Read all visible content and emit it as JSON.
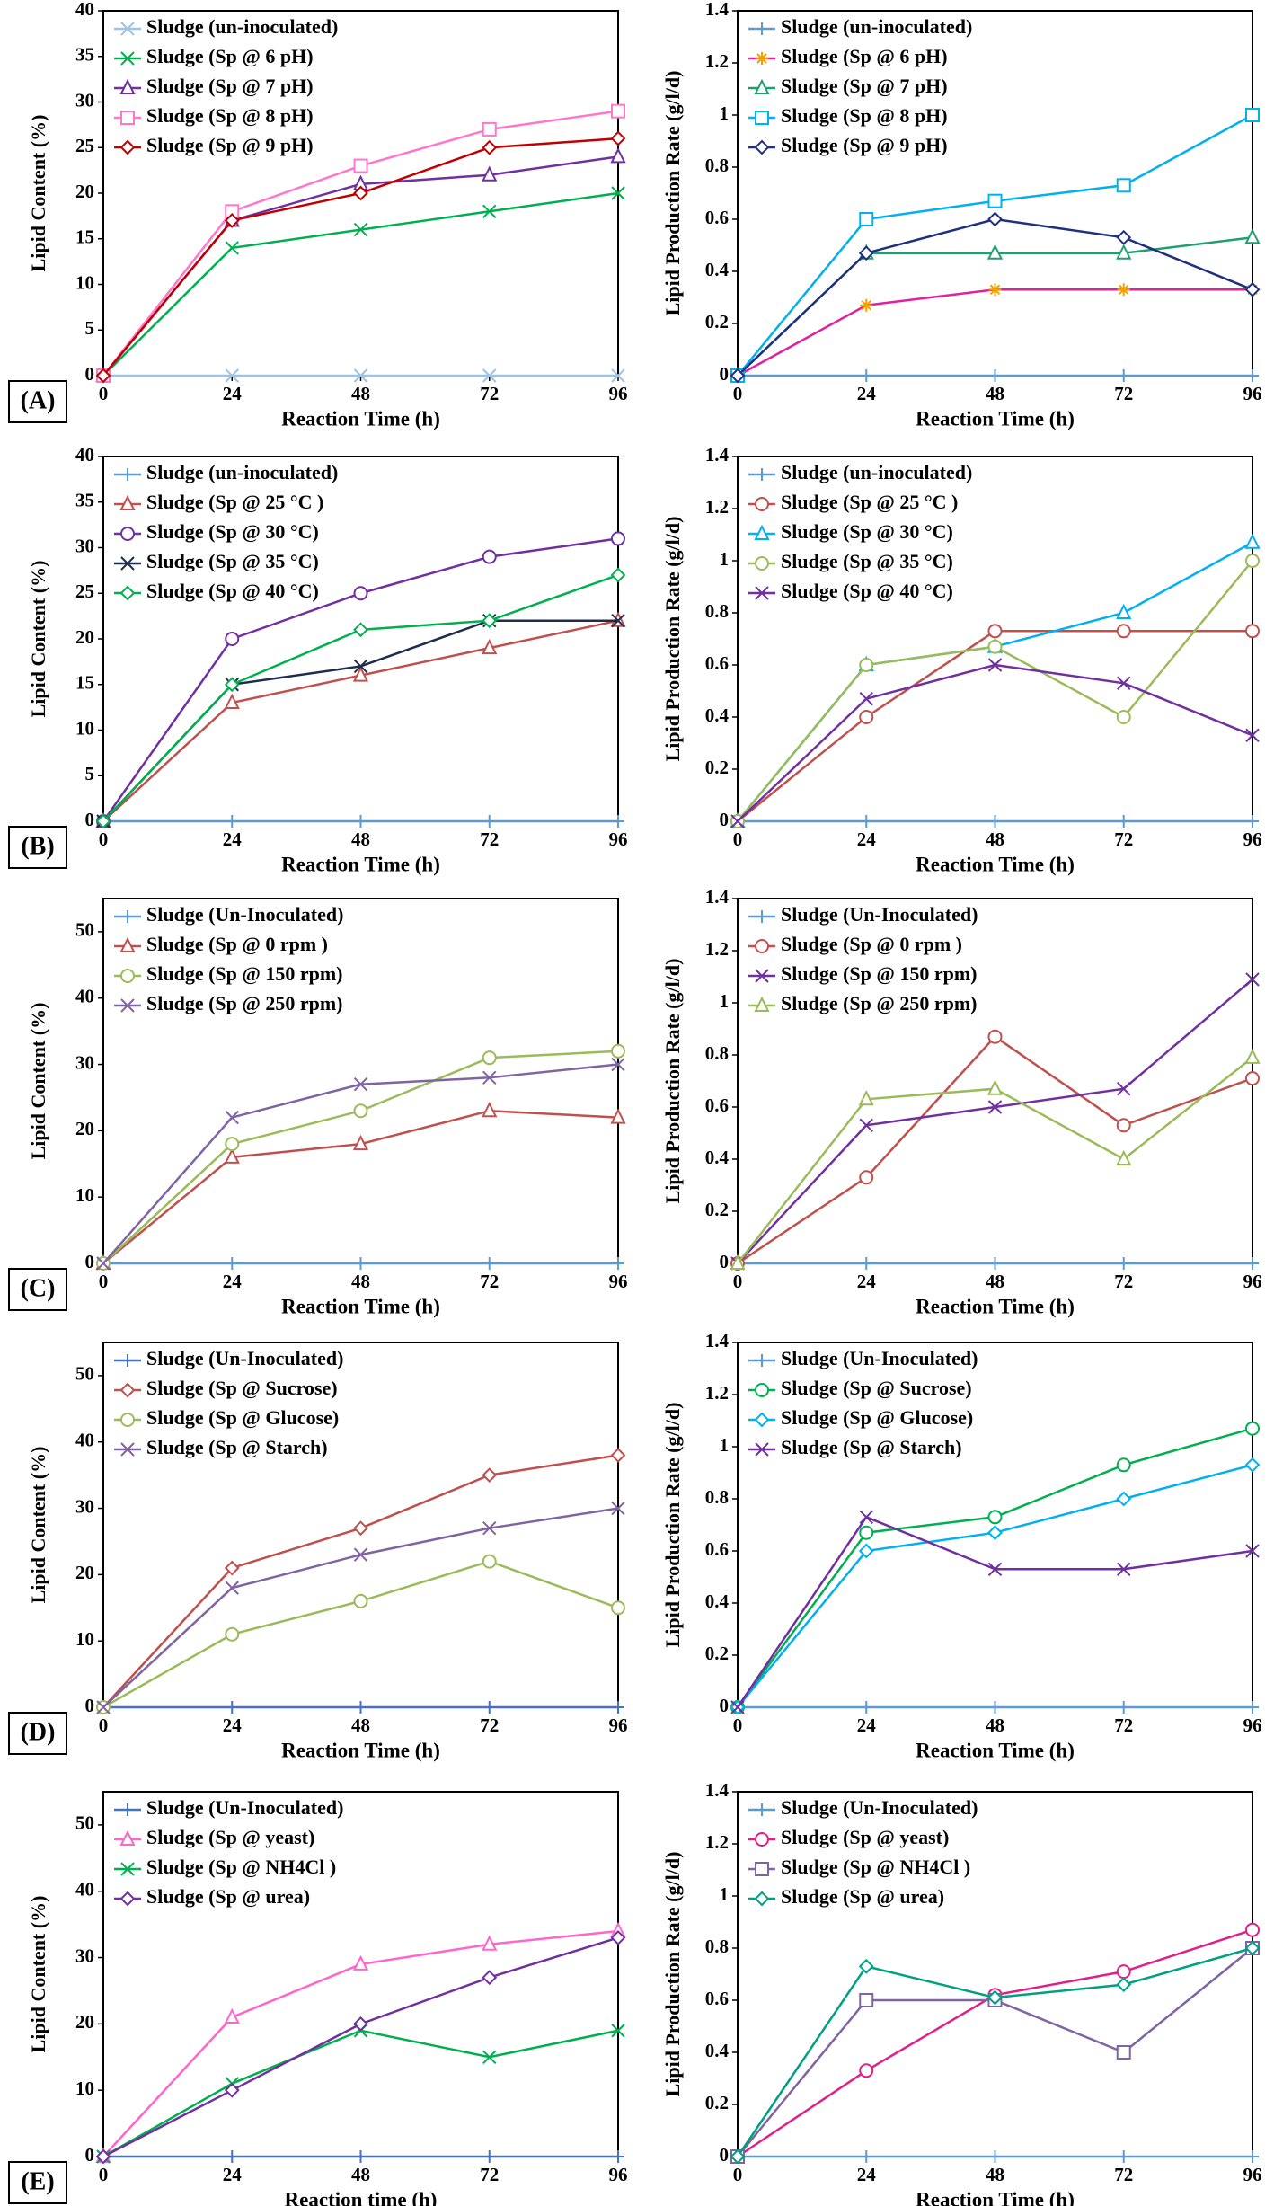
{
  "chart_data": [
    {
      "type": "line",
      "panel_label": "(A)",
      "xlabel": "Reaction Time (h)",
      "ylabel": "Lipid Content (%)",
      "legend": "upper left",
      "x": [
        0,
        24,
        48,
        72,
        96
      ],
      "xlim": [
        0,
        96
      ],
      "xticks": [
        0,
        24,
        48,
        72,
        96
      ],
      "ylim": [
        0,
        40
      ],
      "yticks": [
        0,
        5,
        10,
        15,
        20,
        25,
        30,
        35,
        40
      ],
      "series": [
        {
          "name": "Sludge (un-inoculated)",
          "color": "#9dc3e6",
          "marker": "x",
          "values": [
            0,
            0,
            0,
            0,
            0
          ]
        },
        {
          "name": "Sludge (Sp @ 6 pH)",
          "color": "#00b050",
          "marker": "x",
          "values": [
            0,
            14,
            16,
            18,
            20
          ]
        },
        {
          "name": "Sludge (Sp @ 7 pH)",
          "color": "#7030a0",
          "marker": "triangle",
          "values": [
            0,
            17,
            21,
            22,
            24
          ]
        },
        {
          "name": "Sludge (Sp @ 8 pH)",
          "color": "#ff77cc",
          "marker": "square",
          "values": [
            0,
            18,
            23,
            27,
            29
          ]
        },
        {
          "name": "Sludge (Sp @ 9 pH)",
          "color": "#c00000",
          "marker": "diamond",
          "values": [
            0,
            17,
            20,
            25,
            26
          ]
        }
      ]
    },
    {
      "type": "line",
      "xlabel": "Reaction Time (h)",
      "ylabel": "Lipid Production Rate  (g/l/d)",
      "legend": "upper left",
      "x": [
        0,
        24,
        48,
        72,
        96
      ],
      "xlim": [
        0,
        96
      ],
      "xticks": [
        0,
        24,
        48,
        72,
        96
      ],
      "ylim": [
        0,
        1.4
      ],
      "yticks": [
        0,
        0.2,
        0.4,
        0.6,
        0.8,
        1,
        1.2,
        1.4
      ],
      "series": [
        {
          "name": "Sludge (un-inoculated)",
          "color": "#5b9bd5",
          "marker": "plus",
          "values": [
            0,
            0,
            0,
            0,
            0
          ]
        },
        {
          "name": "Sludge (Sp @ 6 pH)",
          "color": "#e020a0",
          "marker": "asterisk",
          "values": [
            0,
            0.27,
            0.33,
            0.33,
            0.33
          ]
        },
        {
          "name": "Sludge (Sp @ 7 pH)",
          "color": "#20a070",
          "marker": "triangle",
          "values": [
            0,
            0.47,
            0.47,
            0.47,
            0.53
          ]
        },
        {
          "name": "Sludge (Sp @ 8 pH)",
          "color": "#00b0f0",
          "marker": "square",
          "values": [
            0,
            0.6,
            0.67,
            0.73,
            1
          ]
        },
        {
          "name": "Sludge (Sp @ 9 pH)",
          "color": "#203080",
          "marker": "diamond",
          "values": [
            0,
            0.47,
            0.6,
            0.53,
            0.33
          ]
        }
      ]
    },
    {
      "type": "line",
      "panel_label": "(B)",
      "xlabel": "Reaction Time (h)",
      "ylabel": "Lipid Content (%)",
      "legend": "upper left",
      "x": [
        0,
        24,
        48,
        72,
        96
      ],
      "xlim": [
        0,
        96
      ],
      "xticks": [
        0,
        24,
        48,
        72,
        96
      ],
      "ylim": [
        0,
        40
      ],
      "yticks": [
        0,
        5,
        10,
        15,
        20,
        25,
        30,
        35,
        40
      ],
      "series": [
        {
          "name": "Sludge (un-inoculated)",
          "color": "#5b9bd5",
          "marker": "plus",
          "values": [
            0,
            0,
            0,
            0,
            0
          ]
        },
        {
          "name": "Sludge (Sp @ 25 °C )",
          "color": "#c0504d",
          "marker": "triangle",
          "values": [
            0,
            13,
            16,
            19,
            22
          ]
        },
        {
          "name": "Sludge (Sp @ 30 °C)",
          "color": "#7030a0",
          "marker": "circle",
          "values": [
            0,
            20,
            25,
            29,
            31
          ]
        },
        {
          "name": "Sludge (Sp @ 35 °C)",
          "color": "#1f2d4d",
          "marker": "x",
          "values": [
            0,
            15,
            17,
            22,
            22
          ]
        },
        {
          "name": "Sludge (Sp @ 40 °C)",
          "color": "#00b050",
          "marker": "diamond",
          "values": [
            0,
            15,
            21,
            22,
            27
          ]
        }
      ]
    },
    {
      "type": "line",
      "xlabel": "Reaction Time (h)",
      "ylabel": "Lipid Production Rate  (g/l/d)",
      "legend": "upper left",
      "x": [
        0,
        24,
        48,
        72,
        96
      ],
      "xlim": [
        0,
        96
      ],
      "xticks": [
        0,
        24,
        48,
        72,
        96
      ],
      "ylim": [
        0,
        1.4
      ],
      "yticks": [
        0,
        0.2,
        0.4,
        0.6,
        0.8,
        1,
        1.2,
        1.4
      ],
      "series": [
        {
          "name": "Sludge (un-inoculated)",
          "color": "#5b9bd5",
          "marker": "plus",
          "values": [
            0,
            0,
            0,
            0,
            0
          ]
        },
        {
          "name": "Sludge (Sp @ 25 °C )",
          "color": "#c0504d",
          "marker": "circle",
          "values": [
            0,
            0.4,
            0.73,
            0.73,
            0.73
          ]
        },
        {
          "name": "Sludge (Sp @ 30 °C)",
          "color": "#00b0f0",
          "marker": "triangle",
          "values": [
            0,
            0.6,
            0.67,
            0.8,
            1.07
          ]
        },
        {
          "name": "Sludge (Sp @ 35 °C)",
          "color": "#9bbb59",
          "marker": "circle",
          "values": [
            0,
            0.6,
            0.67,
            0.4,
            1
          ]
        },
        {
          "name": "Sludge (Sp @ 40 °C)",
          "color": "#7030a0",
          "marker": "x",
          "values": [
            0,
            0.47,
            0.6,
            0.53,
            0.33
          ]
        }
      ]
    },
    {
      "type": "line",
      "panel_label": "(C)",
      "xlabel": "Reaction Time (h)",
      "ylabel": "Lipid Content (%)",
      "legend": "upper left",
      "x": [
        0,
        24,
        48,
        72,
        96
      ],
      "xlim": [
        0,
        96
      ],
      "xticks": [
        0,
        24,
        48,
        72,
        96
      ],
      "ylim": [
        0,
        55
      ],
      "yticks": [
        0,
        10,
        20,
        30,
        40,
        50
      ],
      "series": [
        {
          "name": "Sludge (Un-Inoculated)",
          "color": "#5b9bd5",
          "marker": "plus",
          "values": [
            0,
            0,
            0,
            0,
            0
          ]
        },
        {
          "name": "Sludge (Sp @ 0 rpm )",
          "color": "#c0504d",
          "marker": "triangle",
          "values": [
            0,
            16,
            18,
            23,
            22
          ]
        },
        {
          "name": "Sludge (Sp @ 150 rpm)",
          "color": "#9bbb59",
          "marker": "circle",
          "values": [
            0,
            18,
            23,
            31,
            32
          ]
        },
        {
          "name": "Sludge (Sp @ 250 rpm)",
          "color": "#8064a2",
          "marker": "x",
          "values": [
            0,
            22,
            27,
            28,
            30
          ]
        }
      ]
    },
    {
      "type": "line",
      "xlabel": "Reaction Time (h)",
      "ylabel": "Lipid Production Rate  (g/l/d)",
      "legend": "upper left",
      "x": [
        0,
        24,
        48,
        72,
        96
      ],
      "xlim": [
        0,
        96
      ],
      "xticks": [
        0,
        24,
        48,
        72,
        96
      ],
      "ylim": [
        0,
        1.4
      ],
      "yticks": [
        0,
        0.2,
        0.4,
        0.6,
        0.8,
        1,
        1.2,
        1.4
      ],
      "series": [
        {
          "name": "Sludge (Un-Inoculated)",
          "color": "#5b9bd5",
          "marker": "plus",
          "values": [
            0,
            0,
            0,
            0,
            0
          ]
        },
        {
          "name": "Sludge (Sp @ 0 rpm )",
          "color": "#c0504d",
          "marker": "circle",
          "values": [
            0,
            0.33,
            0.87,
            0.53,
            0.71
          ]
        },
        {
          "name": "Sludge (Sp @ 150 rpm)",
          "color": "#7030a0",
          "marker": "x",
          "values": [
            0,
            0.53,
            0.6,
            0.67,
            1.09
          ]
        },
        {
          "name": "Sludge (Sp @ 250 rpm)",
          "color": "#9bbb59",
          "marker": "triangle",
          "values": [
            0,
            0.63,
            0.67,
            0.4,
            0.79
          ]
        }
      ]
    },
    {
      "type": "line",
      "panel_label": "(D)",
      "xlabel": "Reaction Time (h)",
      "ylabel": "Lipid Content  (%)",
      "legend": "upper left",
      "x": [
        0,
        24,
        48,
        72,
        96
      ],
      "xlim": [
        0,
        96
      ],
      "xticks": [
        0,
        24,
        48,
        72,
        96
      ],
      "ylim": [
        0,
        55
      ],
      "yticks": [
        0,
        10,
        20,
        30,
        40,
        50
      ],
      "series": [
        {
          "name": "Sludge (Un-Inoculated)",
          "color": "#4472c4",
          "marker": "plus",
          "values": [
            0,
            0,
            0,
            0,
            0
          ]
        },
        {
          "name": "Sludge (Sp @ Sucrose)",
          "color": "#c0504d",
          "marker": "diamond",
          "values": [
            0,
            21,
            27,
            35,
            38
          ]
        },
        {
          "name": "Sludge (Sp @ Glucose)",
          "color": "#9bbb59",
          "marker": "circle",
          "values": [
            0,
            11,
            16,
            22,
            15
          ]
        },
        {
          "name": "Sludge (Sp @ Starch)",
          "color": "#8064a2",
          "marker": "x",
          "values": [
            0,
            18,
            23,
            27,
            30
          ]
        }
      ]
    },
    {
      "type": "line",
      "xlabel": "Reaction Time (h)",
      "ylabel": "Lipid Production Rate  (g/l/d)",
      "legend": "upper left",
      "x": [
        0,
        24,
        48,
        72,
        96
      ],
      "xlim": [
        0,
        96
      ],
      "xticks": [
        0,
        24,
        48,
        72,
        96
      ],
      "ylim": [
        0,
        1.4
      ],
      "yticks": [
        0,
        0.2,
        0.4,
        0.6,
        0.8,
        1,
        1.2,
        1.4
      ],
      "series": [
        {
          "name": "Sludge (Un-Inoculated)",
          "color": "#5b9bd5",
          "marker": "plus",
          "values": [
            0,
            0,
            0,
            0,
            0
          ]
        },
        {
          "name": "Sludge (Sp @ Sucrose)",
          "color": "#00b050",
          "marker": "circle",
          "values": [
            0,
            0.67,
            0.73,
            0.93,
            1.07
          ]
        },
        {
          "name": "Sludge (Sp @ Glucose)",
          "color": "#00b0f0",
          "marker": "diamond",
          "values": [
            0,
            0.6,
            0.67,
            0.8,
            0.93
          ]
        },
        {
          "name": "Sludge (Sp @ Starch)",
          "color": "#7030a0",
          "marker": "x",
          "values": [
            0,
            0.73,
            0.53,
            0.53,
            0.6
          ]
        }
      ]
    },
    {
      "type": "line",
      "panel_label": "(E)",
      "xlabel": "Reaction time (h)",
      "ylabel": "Lipid Content (%)",
      "legend": "upper left",
      "x": [
        0,
        24,
        48,
        72,
        96
      ],
      "xlim": [
        0,
        96
      ],
      "xticks": [
        0,
        24,
        48,
        72,
        96
      ],
      "ylim": [
        0,
        55
      ],
      "yticks": [
        0,
        10,
        20,
        30,
        40,
        50
      ],
      "series": [
        {
          "name": "Sludge (Un-Inoculated)",
          "color": "#4472c4",
          "marker": "plus",
          "values": [
            0,
            0,
            0,
            0,
            0
          ]
        },
        {
          "name": "Sludge (Sp @ yeast)",
          "color": "#ff66cc",
          "marker": "triangle",
          "values": [
            0,
            21,
            29,
            32,
            34
          ]
        },
        {
          "name": "Sludge (Sp @ NH4Cl )",
          "color": "#00b050",
          "marker": "x",
          "values": [
            0,
            11,
            19,
            15,
            19
          ]
        },
        {
          "name": "Sludge (Sp @ urea)",
          "color": "#7030a0",
          "marker": "diamond",
          "values": [
            0,
            10,
            20,
            27,
            33
          ]
        }
      ]
    },
    {
      "type": "line",
      "xlabel": "Reaction Time (h)",
      "ylabel": "Lipid Production Rate  (g/l/d)",
      "legend": "upper left",
      "x": [
        0,
        24,
        48,
        72,
        96
      ],
      "xlim": [
        0,
        96
      ],
      "xticks": [
        0,
        24,
        48,
        72,
        96
      ],
      "ylim": [
        0,
        1.4
      ],
      "yticks": [
        0,
        0.2,
        0.4,
        0.6,
        0.8,
        1,
        1.2,
        1.4
      ],
      "series": [
        {
          "name": "Sludge (Un-Inoculated)",
          "color": "#5b9bd5",
          "marker": "plus",
          "values": [
            0,
            0,
            0,
            0,
            0
          ]
        },
        {
          "name": "Sludge (Sp @ yeast)",
          "color": "#e0208a",
          "marker": "circle",
          "values": [
            0,
            0.33,
            0.62,
            0.71,
            0.87
          ]
        },
        {
          "name": "Sludge (Sp @ NH4Cl )",
          "color": "#8064a2",
          "marker": "square",
          "values": [
            0,
            0.6,
            0.6,
            0.4,
            0.8
          ]
        },
        {
          "name": "Sludge (Sp @ urea)",
          "color": "#00a080",
          "marker": "diamond",
          "values": [
            0,
            0.73,
            0.61,
            0.66,
            0.8
          ]
        }
      ]
    }
  ]
}
